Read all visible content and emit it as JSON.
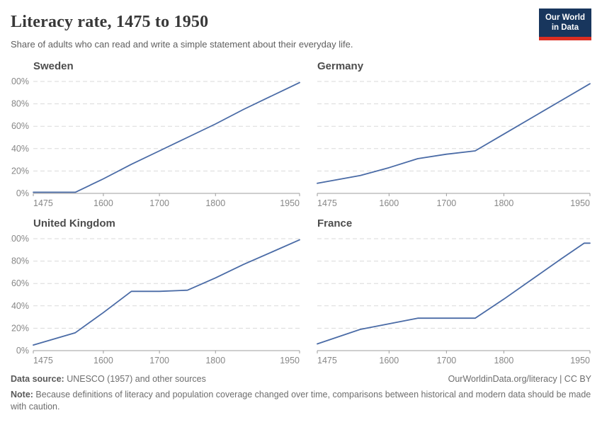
{
  "header": {
    "title": "Literacy rate, 1475 to 1950",
    "subtitle": "Share of adults who can read and write a simple statement about their everyday life.",
    "logo": {
      "line1": "Our World",
      "line2": "in Data"
    }
  },
  "colors": {
    "line": "#4a6ba6",
    "logo_background": "#18365d",
    "logo_stripe": "#dc2e22",
    "gridline": "#dadada",
    "axis": "#9c9c9c"
  },
  "chart_data": [
    {
      "type": "line",
      "title": "Sweden",
      "x": [
        1475,
        1550,
        1600,
        1650,
        1700,
        1750,
        1800,
        1850,
        1900,
        1950
      ],
      "values": [
        1,
        1,
        13,
        26,
        38,
        50,
        62,
        75,
        87,
        99
      ],
      "xlim": [
        1475,
        1950
      ],
      "ylim": [
        0,
        100
      ],
      "xticks": [
        1475,
        1600,
        1700,
        1800,
        1950
      ],
      "yticks": [
        "0%",
        "20%",
        "40%",
        "60%",
        "80%",
        "100%"
      ],
      "grid": "horizontal-dashed",
      "show_y_labels": true,
      "xlabel": "",
      "ylabel": ""
    },
    {
      "type": "line",
      "title": "Germany",
      "x": [
        1475,
        1550,
        1600,
        1650,
        1700,
        1750,
        1800,
        1850,
        1900,
        1950
      ],
      "values": [
        9,
        16,
        23,
        31,
        35,
        38,
        53,
        68,
        83,
        98
      ],
      "xlim": [
        1475,
        1950
      ],
      "ylim": [
        0,
        100
      ],
      "xticks": [
        1475,
        1600,
        1700,
        1800,
        1950
      ],
      "yticks": [
        "0%",
        "20%",
        "40%",
        "60%",
        "80%",
        "100%"
      ],
      "grid": "horizontal-dashed",
      "show_y_labels": false,
      "xlabel": "",
      "ylabel": ""
    },
    {
      "type": "line",
      "title": "United Kingdom",
      "x": [
        1475,
        1550,
        1600,
        1650,
        1700,
        1750,
        1800,
        1850,
        1900,
        1950
      ],
      "values": [
        5,
        16,
        34,
        53,
        53,
        54,
        65,
        77,
        88,
        99
      ],
      "xlim": [
        1475,
        1950
      ],
      "ylim": [
        0,
        100
      ],
      "xticks": [
        1475,
        1600,
        1700,
        1800,
        1950
      ],
      "yticks": [
        "0%",
        "20%",
        "40%",
        "60%",
        "80%",
        "100%"
      ],
      "grid": "horizontal-dashed",
      "show_y_labels": true,
      "xlabel": "",
      "ylabel": ""
    },
    {
      "type": "line",
      "title": "France",
      "x": [
        1475,
        1550,
        1600,
        1650,
        1700,
        1750,
        1800,
        1850,
        1900,
        1940,
        1950
      ],
      "values": [
        6,
        19,
        24,
        29,
        29,
        29,
        46,
        64,
        82,
        96,
        96
      ],
      "xlim": [
        1475,
        1950
      ],
      "ylim": [
        0,
        100
      ],
      "xticks": [
        1475,
        1600,
        1700,
        1800,
        1950
      ],
      "yticks": [
        "0%",
        "20%",
        "40%",
        "60%",
        "80%",
        "100%"
      ],
      "grid": "horizontal-dashed",
      "show_y_labels": false,
      "xlabel": "",
      "ylabel": ""
    }
  ],
  "footer": {
    "data_source_label": "Data source:",
    "data_source_text": " UNESCO (1957) and other sources",
    "citation": "OurWorldinData.org/literacy | CC BY",
    "note_label": "Note:",
    "note_text": " Because definitions of literacy and population coverage changed over time, comparisons between historical and modern data should be made with caution."
  }
}
